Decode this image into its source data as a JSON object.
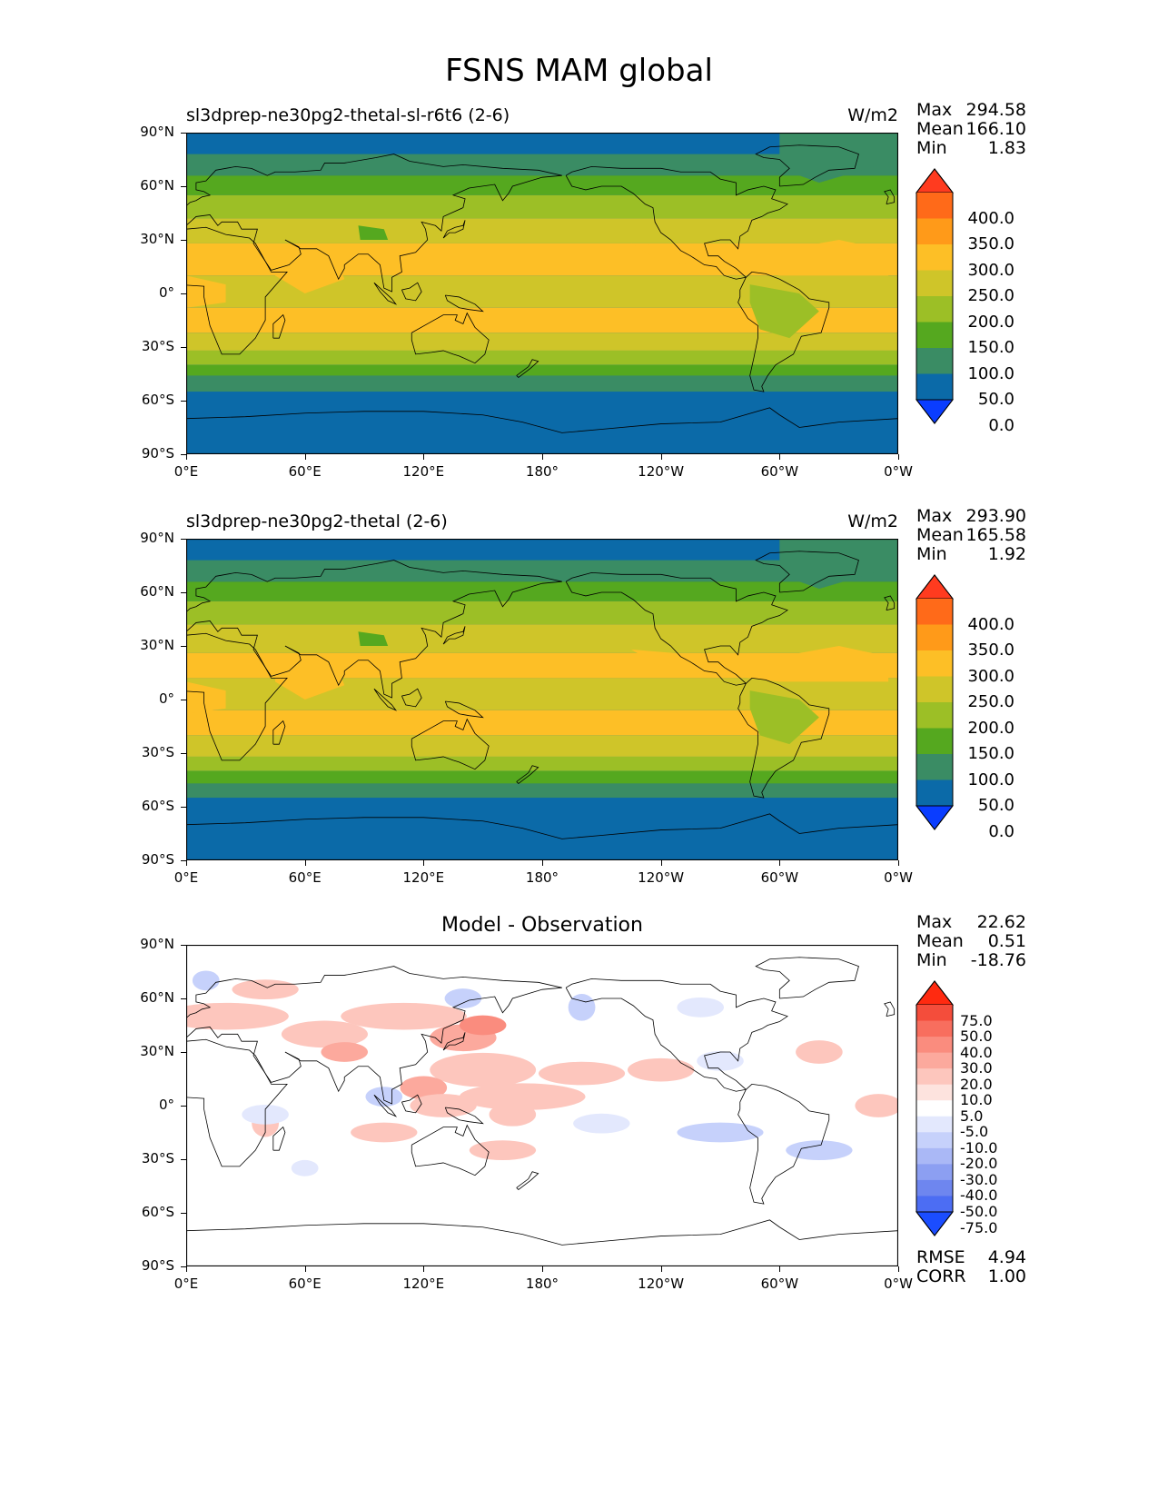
{
  "title": "FSNS MAM global",
  "panels": [
    {
      "label": "sl3dprep-ne30pg2-thetal-sl-r6t6 (2-6)",
      "units": "W/m2",
      "stats": [
        {
          "name": "Max",
          "value": "294.58"
        },
        {
          "name": "Mean",
          "value": "166.10"
        },
        {
          "name": "Min",
          "value": "1.83"
        }
      ],
      "colorbar": {
        "labels": [
          "400.0",
          "350.0",
          "300.0",
          "250.0",
          "200.0",
          "150.0",
          "100.0",
          "50.0",
          "0.0"
        ],
        "colors": [
          "#ff3b1f",
          "#ff6a19",
          "#ff9a19",
          "#fdbf26",
          "#cfc529",
          "#9cbf26",
          "#55a81f",
          "#3a8c64",
          "#0b6aa8",
          "#0a3dff"
        ]
      }
    },
    {
      "label": "sl3dprep-ne30pg2-thetal (2-6)",
      "units": "W/m2",
      "stats": [
        {
          "name": "Max",
          "value": "293.90"
        },
        {
          "name": "Mean",
          "value": "165.58"
        },
        {
          "name": "Min",
          "value": "1.92"
        }
      ],
      "colorbar": {
        "labels": [
          "400.0",
          "350.0",
          "300.0",
          "250.0",
          "200.0",
          "150.0",
          "100.0",
          "50.0",
          "0.0"
        ],
        "colors": [
          "#ff3b1f",
          "#ff6a19",
          "#ff9a19",
          "#fdbf26",
          "#cfc529",
          "#9cbf26",
          "#55a81f",
          "#3a8c64",
          "#0b6aa8",
          "#0a3dff"
        ]
      }
    },
    {
      "label": "Model - Observation",
      "stats": [
        {
          "name": "Max",
          "value": "22.62"
        },
        {
          "name": "Mean",
          "value": "0.51"
        },
        {
          "name": "Min",
          "value": "-18.76"
        }
      ],
      "colorbar": {
        "labels": [
          "75.0",
          "50.0",
          "40.0",
          "30.0",
          "20.0",
          "10.0",
          "5.0",
          "-5.0",
          "-10.0",
          "-20.0",
          "-30.0",
          "-40.0",
          "-50.0",
          "-75.0"
        ],
        "colors": [
          "#ff2a10",
          "#f44d3b",
          "#f86e5e",
          "#fa8c7e",
          "#fca99d",
          "#fdc6bd",
          "#fde3de",
          "#ffffff",
          "#e3e8fd",
          "#c6d1fb",
          "#aab8f6",
          "#8c9ff2",
          "#6e86ef",
          "#4c6df3",
          "#1b4dff"
        ]
      },
      "metrics": [
        {
          "name": "RMSE",
          "value": "4.94"
        },
        {
          "name": "CORR",
          "value": "1.00"
        }
      ]
    }
  ],
  "axes": {
    "lat_ticks": [
      "90°N",
      "60°N",
      "30°N",
      "0°",
      "30°S",
      "60°S",
      "90°S"
    ],
    "lon_ticks": [
      "0°E",
      "60°E",
      "120°E",
      "180°",
      "120°W",
      "60°W",
      "0°W"
    ]
  }
}
